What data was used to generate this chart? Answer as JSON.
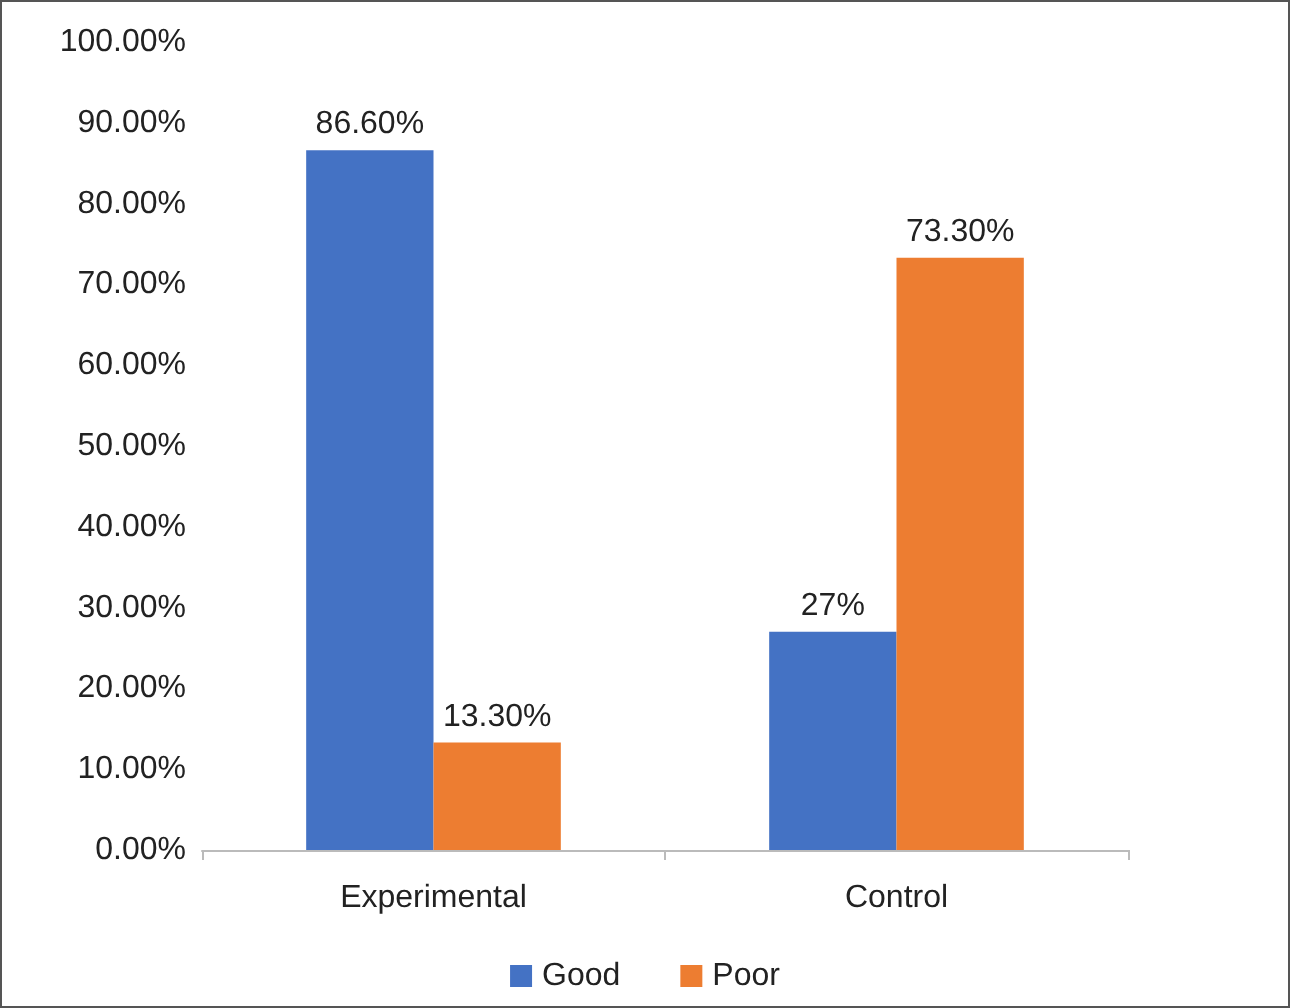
{
  "chart_data": {
    "type": "bar",
    "categories": [
      "Experimental",
      "Control"
    ],
    "series": [
      {
        "name": "Good",
        "color": "#4472c4",
        "values": [
          86.6,
          27
        ],
        "value_labels": [
          "86.60%",
          "27%"
        ]
      },
      {
        "name": "Poor",
        "color": "#ed7d31",
        "values": [
          13.3,
          73.3
        ],
        "value_labels": [
          "13.30%",
          "73.30%"
        ]
      }
    ],
    "ylim": [
      0,
      100
    ],
    "yticks": [
      {
        "value": 0,
        "label": "0.00%"
      },
      {
        "value": 10,
        "label": "10.00%"
      },
      {
        "value": 20,
        "label": "20.00%"
      },
      {
        "value": 30,
        "label": "30.00%"
      },
      {
        "value": 40,
        "label": "40.00%"
      },
      {
        "value": 50,
        "label": "50.00%"
      },
      {
        "value": 60,
        "label": "60.00%"
      },
      {
        "value": 70,
        "label": "70.00%"
      },
      {
        "value": 80,
        "label": "80.00%"
      },
      {
        "value": 90,
        "label": "90.00%"
      },
      {
        "value": 100,
        "label": "100.00%"
      }
    ],
    "grid": false,
    "legend": "bottom"
  }
}
